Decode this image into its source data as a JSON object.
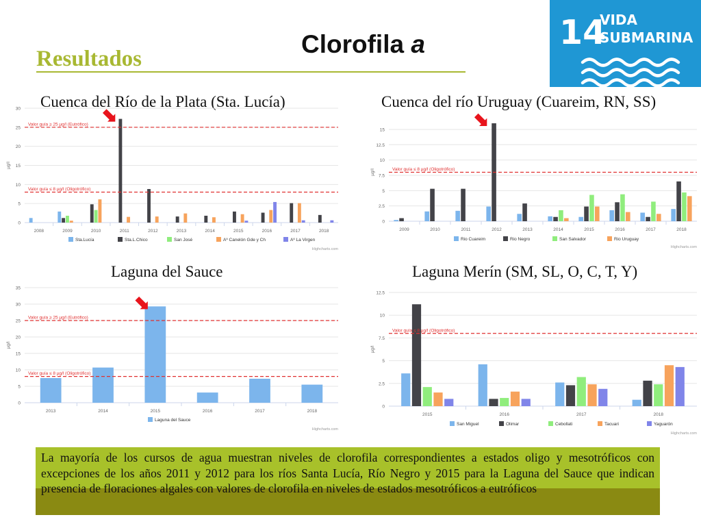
{
  "page": {
    "title_main": "Clorofila",
    "title_italic": "a",
    "section": "Resultados"
  },
  "badge": {
    "number": "14",
    "line1": "VIDA",
    "line2": "SUBMARINA",
    "color": "#1f97d4"
  },
  "footer": {
    "text": "La mayoría de los cursos de agua muestran niveles de clorofila correspondientes a estados oligo y mesotróficos con excepciones de los años 2011 y 2012 para los ríos Santa Lucía, Río Negro y 2015 para la Laguna del Sauce que indican presencia de floraciones algales con valores de clorofila en niveles de estados mesotróficos a eutróficos"
  },
  "chart_data": [
    {
      "id": "c1",
      "type": "bar",
      "title": "Cuenca del Río de la Plata (Sta. Lucía)",
      "ylabel": "µg/l",
      "ylim": [
        0,
        30
      ],
      "yticks": [
        0,
        5,
        10,
        15,
        20,
        25,
        30
      ],
      "categories": [
        "2008",
        "2009",
        "2010",
        "2011",
        "2012",
        "2013",
        "2014",
        "2015",
        "2016",
        "2017",
        "2018"
      ],
      "series": [
        {
          "name": "Sta.Lucía",
          "color": "#7cb5ec",
          "values": [
            1.2,
            2.9,
            0,
            0,
            0,
            0,
            0,
            0,
            0,
            0,
            0
          ]
        },
        {
          "name": "Sta.L.Chico",
          "color": "#434348",
          "values": [
            0,
            1.2,
            4.8,
            27.2,
            8.8,
            1.6,
            1.8,
            2.9,
            2.6,
            5.1,
            2.0
          ]
        },
        {
          "name": "San José",
          "color": "#90ed7d",
          "values": [
            0,
            1.8,
            3.3,
            0,
            0,
            0,
            0,
            0,
            0,
            0,
            0
          ]
        },
        {
          "name": "Aº Canelón Gde y Ch",
          "color": "#f7a35c",
          "values": [
            0,
            0.5,
            6.1,
            1.5,
            1.6,
            2.4,
            1.4,
            2.2,
            3.3,
            5.1,
            0
          ]
        },
        {
          "name": "Aº La Virgen",
          "color": "#8085e9",
          "values": [
            0,
            0,
            0,
            0,
            0,
            0,
            0,
            0.5,
            5.4,
            0.6,
            0.6
          ]
        }
      ],
      "reference_lines": [
        {
          "value": 25,
          "label": "Valor guía ≥ 25 µg/l (Eutrófico)"
        },
        {
          "value": 8,
          "label": "Valor guía ≤ 8 µg/l (Oligotrófico)"
        }
      ],
      "arrow_category": "2011",
      "credit": "Highcharts.com"
    },
    {
      "id": "c2",
      "type": "bar",
      "title": "Cuenca del río Uruguay (Cuareim, RN, SS)",
      "ylabel": "µg/l",
      "ylim": [
        0,
        16
      ],
      "yticks": [
        0,
        2.5,
        5,
        7.5,
        10,
        12.5,
        15
      ],
      "categories": [
        "2009",
        "2010",
        "2011",
        "2012",
        "2013",
        "2014",
        "2015",
        "2016",
        "2017",
        "2018"
      ],
      "series": [
        {
          "name": "Rio Cuareim",
          "color": "#7cb5ec",
          "values": [
            0.2,
            1.6,
            1.7,
            2.4,
            1.2,
            0.8,
            0.7,
            1.8,
            1.4,
            2.0
          ]
        },
        {
          "name": "Rio Negro",
          "color": "#434348",
          "values": [
            0.5,
            5.3,
            5.3,
            16.0,
            2.9,
            0.7,
            2.4,
            3.1,
            0.7,
            6.5
          ]
        },
        {
          "name": "San Salvador",
          "color": "#90ed7d",
          "values": [
            0,
            0,
            0,
            0,
            0,
            1.8,
            4.3,
            4.4,
            3.2,
            4.7
          ]
        },
        {
          "name": "Rio Uruguay",
          "color": "#f7a35c",
          "values": [
            0,
            0,
            0,
            0,
            0,
            0.5,
            2.4,
            1.5,
            1.2,
            4.1
          ]
        }
      ],
      "reference_lines": [
        {
          "value": 8,
          "label": "Valor guía ≤ 8 µg/l (Oligotrófico)"
        }
      ],
      "arrow_category": "2012",
      "credit": "Highcharts.com"
    },
    {
      "id": "c3",
      "type": "bar",
      "title": "Laguna del Sauce",
      "ylabel": "µg/l",
      "ylim": [
        0,
        35
      ],
      "yticks": [
        0,
        5,
        10,
        15,
        20,
        25,
        30,
        35
      ],
      "categories": [
        "2013",
        "2014",
        "2015",
        "2016",
        "2017",
        "2018"
      ],
      "series": [
        {
          "name": "Laguna del Sauce",
          "color": "#7cb5ec",
          "values": [
            7.5,
            10.7,
            29.3,
            3.1,
            7.3,
            5.5
          ]
        }
      ],
      "reference_lines": [
        {
          "value": 25,
          "label": "Valor guía ≥ 25 µg/l (Eutrófico)"
        },
        {
          "value": 8,
          "label": "Valor guía ≤ 8 µg/l (Oligotrófico)"
        }
      ],
      "arrow_category": "2015",
      "credit": "Highcharts.com"
    },
    {
      "id": "c4",
      "type": "bar",
      "title": "Laguna Merín (SM, SL, O, C, T, Y)",
      "ylabel": "µg/l",
      "ylim": [
        0,
        12.5
      ],
      "yticks": [
        0,
        2.5,
        5,
        7.5,
        10,
        12.5
      ],
      "categories": [
        "2015",
        "2016",
        "2017",
        "2018"
      ],
      "series": [
        {
          "name": "San Miguel",
          "color": "#7cb5ec",
          "values": [
            3.6,
            4.6,
            2.6,
            0.7
          ]
        },
        {
          "name": "Olimar",
          "color": "#434348",
          "values": [
            11.2,
            0.8,
            2.3,
            2.8
          ]
        },
        {
          "name": "Cebollati",
          "color": "#90ed7d",
          "values": [
            2.1,
            0.9,
            3.2,
            2.4
          ]
        },
        {
          "name": "Tacuari",
          "color": "#f7a35c",
          "values": [
            1.5,
            1.6,
            2.4,
            4.5
          ]
        },
        {
          "name": "Yaguarón",
          "color": "#8085e9",
          "values": [
            0.8,
            0.8,
            1.9,
            4.3
          ]
        }
      ],
      "reference_lines": [
        {
          "value": 8,
          "label": "Valor guía ≤ 8 µg/l (Oligotrófico)"
        }
      ],
      "credit": "Highcharts.com"
    }
  ]
}
